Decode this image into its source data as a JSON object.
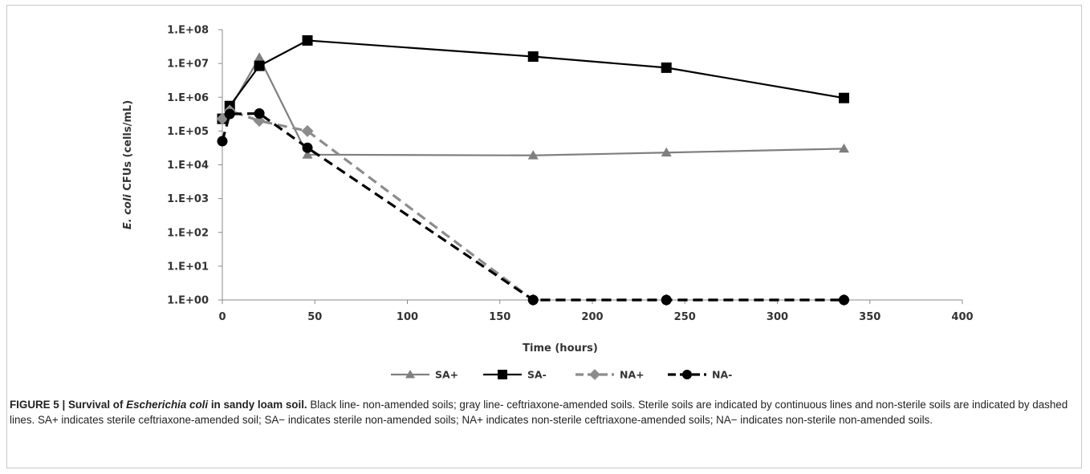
{
  "chart_data": {
    "type": "line",
    "title": "",
    "xlabel": "Time (hours)",
    "ylabel_prefix": "E. coli",
    "ylabel_rest": " CFUs (cells/mL)",
    "x_ticks": [
      "0",
      "50",
      "100",
      "150",
      "200",
      "250",
      "300",
      "350",
      "400"
    ],
    "y_ticks": [
      "1.E+00",
      "1.E+01",
      "1.E+02",
      "1.E+03",
      "1.E+04",
      "1.E+05",
      "1.E+06",
      "1.E+07",
      "1.E+08"
    ],
    "xlim": [
      0,
      400
    ],
    "ylim": [
      1,
      100000000
    ],
    "y_scale": "log",
    "grid": false,
    "legend_position": "bottom",
    "series": [
      {
        "name": "SA+",
        "color": "#7f7f7f",
        "dash": "solid",
        "marker": "triangle",
        "x": [
          0,
          4,
          20,
          46,
          168,
          240,
          336
        ],
        "y": [
          250000,
          450000,
          15000000,
          20000,
          19000,
          23000,
          30000
        ]
      },
      {
        "name": "SA-",
        "color": "#000000",
        "dash": "solid",
        "marker": "square",
        "x": [
          0,
          4,
          20,
          46,
          168,
          240,
          336
        ],
        "y": [
          230000,
          550000,
          8500000,
          48000000,
          16000000,
          7500000,
          950000
        ]
      },
      {
        "name": "NA+",
        "color": "#8c8c8c",
        "dash": "dashed",
        "marker": "diamond",
        "x": [
          0,
          4,
          20,
          46,
          168,
          240,
          336
        ],
        "y": [
          230000,
          400000,
          200000,
          100000,
          1,
          1,
          1
        ]
      },
      {
        "name": "NA-",
        "color": "#000000",
        "dash": "dashed",
        "marker": "circle",
        "x": [
          0,
          4,
          20,
          46,
          168,
          240,
          336
        ],
        "y": [
          50000,
          320000,
          330000,
          32000,
          1,
          1,
          1
        ]
      }
    ]
  },
  "caption": {
    "figure_label": "FIGURE 5 | Survival of ",
    "organism": "Escherichia coli",
    "bold_rest": " in sandy loam soil.",
    "body": " Black line- non-amended soils; gray line- ceftriaxone-amended soils. Sterile soils are indicated by continuous lines and non-sterile soils are indicated by dashed lines. SA+ indicates sterile ceftriaxone-amended soil; SA− indicates sterile non-amended soils; NA+ indicates non-sterile ceftriaxone-amended soils; NA− indicates non-sterile non-amended soils."
  }
}
